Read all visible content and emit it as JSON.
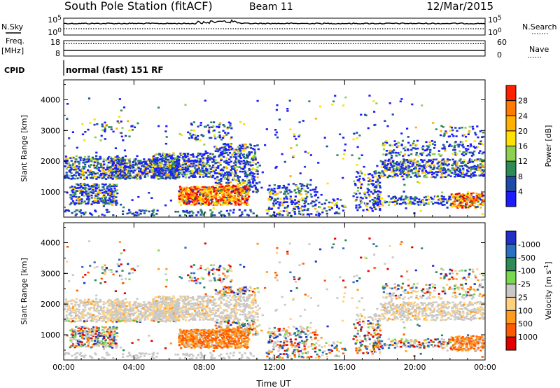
{
  "header": {
    "station": "South Pole Station (fitACF)",
    "beam": "Beam 11",
    "date": "12/Mar/2015"
  },
  "left_labels": {
    "nsky": "N.Sky",
    "freq": "Freq.",
    "freq_unit": "[MHz]",
    "cpid": "CPID"
  },
  "right_labels": {
    "nsearch": "N.Search",
    "nave": "Nave"
  },
  "cpid_text": "normal (fast) 151 RF",
  "colors": {
    "power": [
      "#1c1cff",
      "#1e4aa8",
      "#2e8b57",
      "#8fd14f",
      "#ffe000",
      "#ffb000",
      "#ff7a00",
      "#ff2000",
      "#e00000"
    ],
    "velocity": [
      "#e00000",
      "#ff5a00",
      "#ff9a1a",
      "#ffd080",
      "#c8c8c8",
      "#7ad84f",
      "#2e8b57",
      "#2a6fc0",
      "#2030c8"
    ],
    "ground_scatter": "#c8c8c8"
  },
  "chart_data": [
    {
      "type": "line",
      "name": "noise-panel",
      "left_ticks": [
        "10^5",
        "10^0"
      ],
      "right_ticks": [
        "10^5",
        "10^0"
      ],
      "x_range": [
        0,
        24
      ],
      "y_scale": "log"
    },
    {
      "type": "line",
      "name": "frequency-panel",
      "left_ticks": [
        "18",
        "8"
      ],
      "right_ticks": [
        "60",
        "0"
      ],
      "x_range": [
        0,
        24
      ],
      "frequency_mhz": 11.6,
      "nave": 48
    },
    {
      "type": "heatmap",
      "name": "power-panel",
      "ylabel": "Slant Range [km]",
      "y_ticks": [
        1000,
        2000,
        3000,
        4000
      ],
      "ylim": [
        180,
        4650
      ],
      "x_range": [
        0,
        24
      ],
      "colorbar": {
        "label": "Power [dB]",
        "ticks": [
          "4",
          "8",
          "12",
          "16",
          "20",
          "24",
          "28"
        ],
        "range": [
          0,
          30
        ]
      }
    },
    {
      "type": "heatmap",
      "name": "velocity-panel",
      "ylabel": "Slant Range [km]",
      "xlabel": "Time UT",
      "y_ticks": [
        1000,
        2000,
        3000,
        4000
      ],
      "ylim": [
        180,
        4650
      ],
      "x_range": [
        0,
        24
      ],
      "x_ticks": [
        "00:00",
        "04:00",
        "08:00",
        "12:00",
        "16:00",
        "20:00",
        "00:00"
      ],
      "colorbar": {
        "label": "Velocity [m s^-1]",
        "ticks": [
          "1000",
          "500",
          "100",
          "25",
          "-25",
          "-100",
          "-500",
          "-1000"
        ]
      }
    }
  ]
}
